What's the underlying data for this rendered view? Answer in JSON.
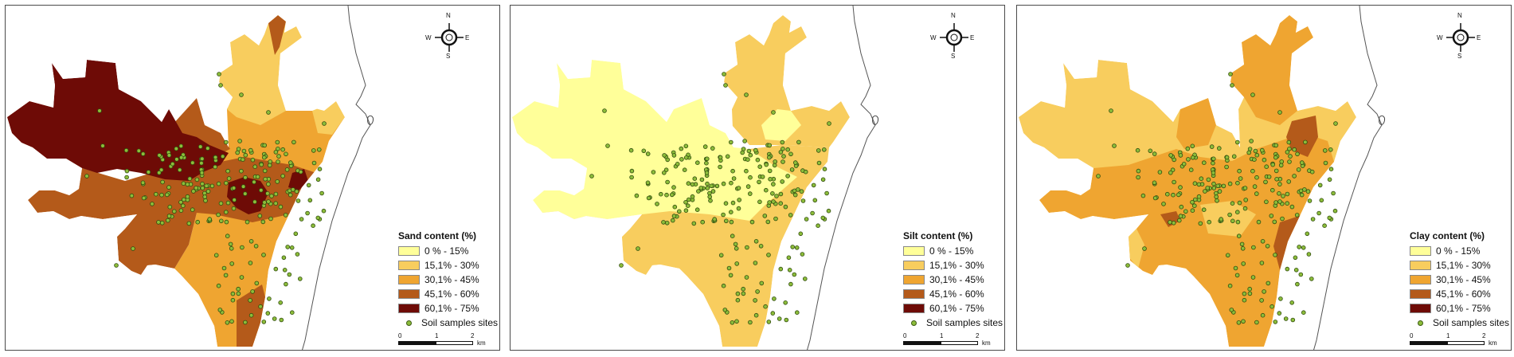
{
  "compass": {
    "north": "N",
    "south": "S",
    "east": "E",
    "west": "W"
  },
  "classes": [
    {
      "label": "0 % - 15%",
      "color": "#ffff99"
    },
    {
      "label": "15,1% - 30%",
      "color": "#f8cd5e"
    },
    {
      "label": "30,1% - 45%",
      "color": "#efa531"
    },
    {
      "label": "45,1% - 60%",
      "color": "#b45a1a"
    },
    {
      "label": "60,1% - 75%",
      "color": "#6e0b06"
    }
  ],
  "sample_sites_label": "Soil samples sites",
  "scalebar": {
    "ticks": [
      "0",
      "1",
      "2"
    ],
    "unit": "km"
  },
  "maps": [
    {
      "legend_title": "Sand content (%)"
    },
    {
      "legend_title": "Silt content (%)"
    },
    {
      "legend_title": "Clay content (%)"
    }
  ]
}
